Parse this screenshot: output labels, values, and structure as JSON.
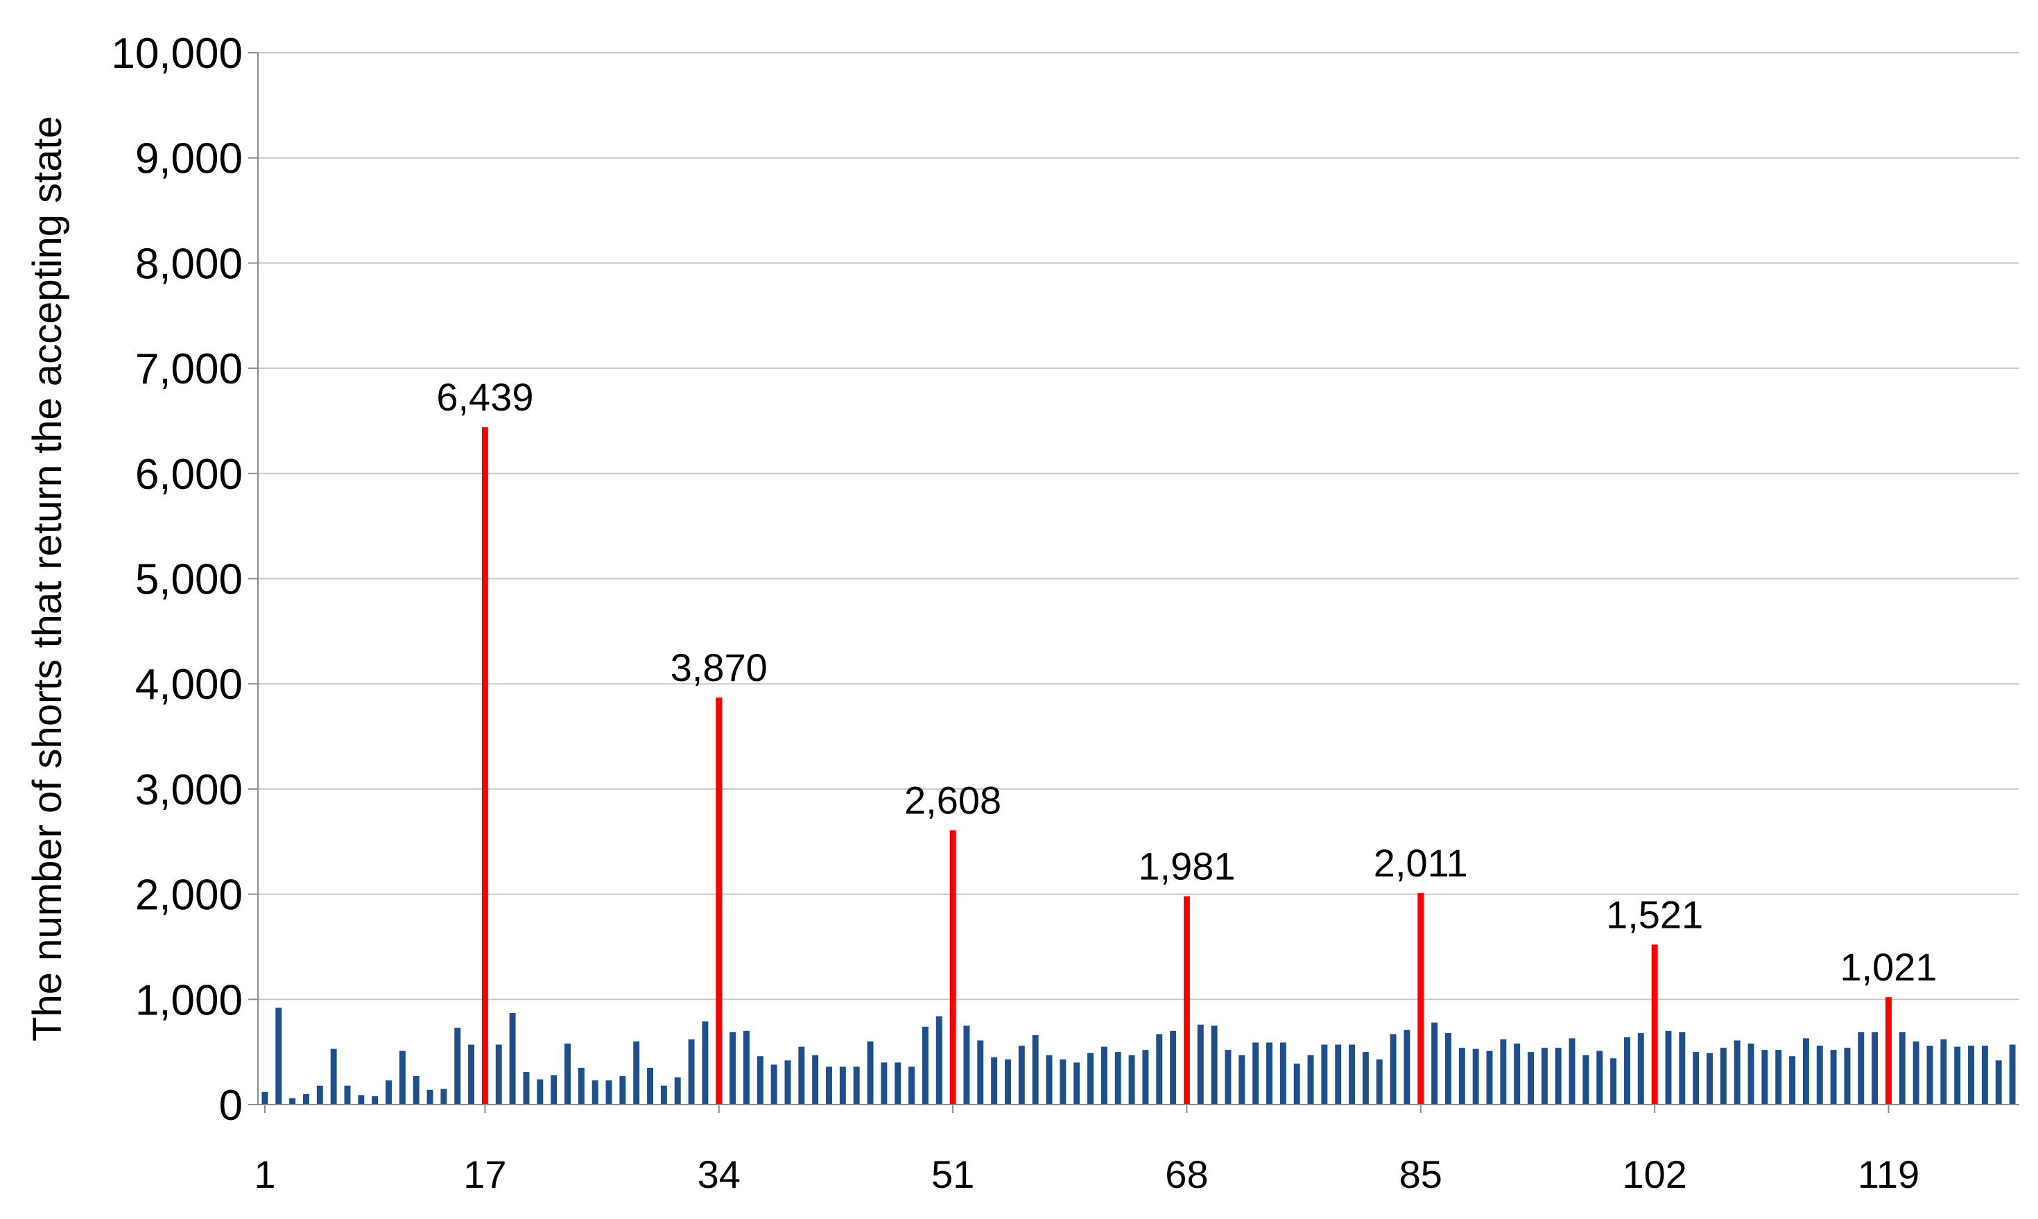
{
  "chart_data": {
    "type": "bar",
    "title": "",
    "xlabel": "",
    "ylabel": "The number of shorts that return the accepting state",
    "ylim": [
      0,
      10000
    ],
    "y_ticks": [
      "0",
      "1,000",
      "2,000",
      "3,000",
      "4,000",
      "5,000",
      "6,000",
      "7,000",
      "8,000",
      "9,000",
      "10,000"
    ],
    "x_tick_labels": [
      "1",
      "17",
      "34",
      "51",
      "68",
      "85",
      "102",
      "119"
    ],
    "x_tick_positions": [
      1,
      17,
      34,
      51,
      68,
      85,
      102,
      119
    ],
    "grid": true,
    "legend": "none",
    "colors": {
      "normal": "#1f4e8c",
      "highlight": "#ff0000",
      "grid": "#c8c8c8"
    },
    "x": [
      1,
      2,
      3,
      4,
      5,
      6,
      7,
      8,
      9,
      10,
      11,
      12,
      13,
      14,
      15,
      16,
      17,
      18,
      19,
      20,
      21,
      22,
      23,
      24,
      25,
      26,
      27,
      28,
      29,
      30,
      31,
      32,
      33,
      34,
      35,
      36,
      37,
      38,
      39,
      40,
      41,
      42,
      43,
      44,
      45,
      46,
      47,
      48,
      49,
      50,
      51,
      52,
      53,
      54,
      55,
      56,
      57,
      58,
      59,
      60,
      61,
      62,
      63,
      64,
      65,
      66,
      67,
      68,
      69,
      70,
      71,
      72,
      73,
      74,
      75,
      76,
      77,
      78,
      79,
      80,
      81,
      82,
      83,
      84,
      85,
      86,
      87,
      88,
      89,
      90,
      91,
      92,
      93,
      94,
      95,
      96,
      97,
      98,
      99,
      100,
      101,
      102,
      103,
      104,
      105,
      106,
      107,
      108,
      109,
      110,
      111,
      112,
      113,
      114,
      115,
      116,
      117,
      118,
      119,
      120,
      121,
      122,
      123,
      124,
      125,
      126,
      127,
      128
    ],
    "values": [
      120,
      920,
      60,
      100,
      180,
      530,
      180,
      90,
      80,
      230,
      510,
      270,
      140,
      150,
      730,
      570,
      6439,
      570,
      870,
      310,
      240,
      280,
      580,
      350,
      230,
      230,
      270,
      600,
      350,
      180,
      260,
      620,
      790,
      3870,
      690,
      700,
      460,
      380,
      420,
      550,
      470,
      360,
      360,
      360,
      600,
      400,
      400,
      360,
      740,
      840,
      2608,
      750,
      610,
      450,
      430,
      560,
      660,
      470,
      430,
      400,
      490,
      550,
      500,
      470,
      520,
      670,
      700,
      1981,
      760,
      750,
      520,
      470,
      590,
      590,
      590,
      390,
      470,
      570,
      570,
      570,
      500,
      430,
      670,
      710,
      2011,
      780,
      680,
      540,
      530,
      510,
      620,
      580,
      500,
      540,
      540,
      630,
      470,
      510,
      440,
      640,
      680,
      1521,
      700,
      690,
      500,
      490,
      540,
      610,
      580,
      520,
      520,
      460,
      630,
      560,
      520,
      540,
      690,
      690,
      1021,
      690,
      600,
      560,
      620,
      550,
      560,
      560,
      420,
      570
    ],
    "highlighted": [
      {
        "x": 17,
        "value": 6439,
        "label": "6,439"
      },
      {
        "x": 34,
        "value": 3870,
        "label": "3,870"
      },
      {
        "x": 51,
        "value": 2608,
        "label": "2,608"
      },
      {
        "x": 68,
        "value": 1981,
        "label": "1,981"
      },
      {
        "x": 85,
        "value": 2011,
        "label": "2,011"
      },
      {
        "x": 102,
        "value": 1521,
        "label": "1,521"
      },
      {
        "x": 119,
        "value": 1021,
        "label": "1,021"
      }
    ]
  }
}
